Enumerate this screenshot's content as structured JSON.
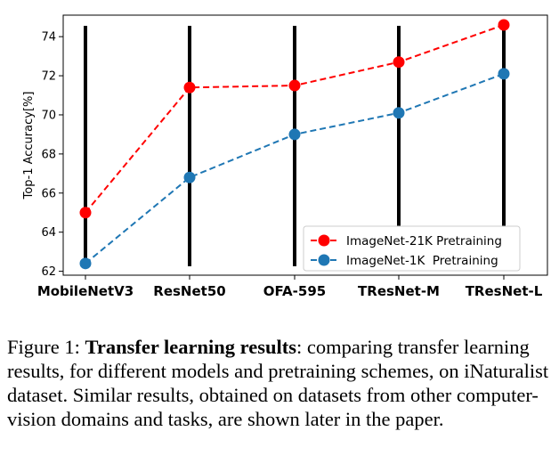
{
  "chart_data": {
    "type": "line",
    "categories": [
      "MobileNetV3",
      "ResNet50",
      "OFA-595",
      "TResNet-M",
      "TResNet-L"
    ],
    "ylabel": "Top-1 Accuracy[%]",
    "xlabel": "",
    "ylim": [
      61.8,
      75.1
    ],
    "yticks": [
      62,
      64,
      66,
      68,
      70,
      72,
      74
    ],
    "grid": false,
    "legend_position": "bottom-right",
    "series": [
      {
        "name": "ImageNet-21K Pretraining",
        "color": "#ff0000",
        "values": [
          65.0,
          71.4,
          71.5,
          72.7,
          74.6
        ]
      },
      {
        "name": "ImageNet-1K  Pretraining",
        "color": "#1f77b4",
        "values": [
          62.4,
          66.8,
          69.0,
          70.1,
          72.1
        ]
      }
    ]
  },
  "caption": {
    "prefix": "Figure 1:  ",
    "bold_title": "Transfer learning results",
    "body": ":  comparing transfer learning results, for different models and pretraining schemes, on iNaturalist dataset.  Similar results, obtained on datasets from other computer-vision domains and tasks, are shown later in the paper."
  }
}
